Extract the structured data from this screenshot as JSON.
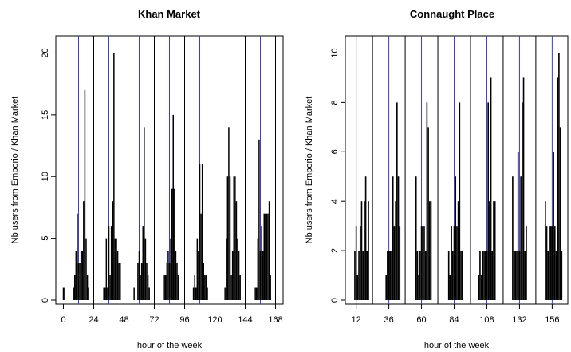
{
  "chart_data": [
    {
      "type": "bar",
      "title": "Khan Market",
      "xlabel": "hour of the week",
      "ylabel": "Nb users from Emporio / Khan Market",
      "xlim": [
        -6,
        174
      ],
      "ylim": [
        0,
        21
      ],
      "xticks": [
        0,
        24,
        48,
        72,
        96,
        120,
        144,
        168
      ],
      "yticks": [
        0,
        5,
        10,
        15,
        20
      ],
      "black_vlines": [
        24,
        48,
        72,
        96,
        120,
        144,
        168
      ],
      "blue_vlines": [
        12,
        36,
        60,
        84,
        108,
        132,
        156
      ],
      "bar_color": "#000000",
      "vline_color": "#000000",
      "blue_vline_color": "#3b3bd0",
      "bars": [
        [
          0,
          1
        ],
        [
          1,
          1
        ],
        [
          8,
          1
        ],
        [
          9,
          2
        ],
        [
          10,
          4
        ],
        [
          11,
          7
        ],
        [
          12,
          3
        ],
        [
          13,
          3
        ],
        [
          14,
          4
        ],
        [
          15,
          4
        ],
        [
          16,
          8
        ],
        [
          17,
          17
        ],
        [
          18,
          5
        ],
        [
          19,
          2
        ],
        [
          20,
          1
        ],
        [
          32,
          1
        ],
        [
          33,
          1
        ],
        [
          34,
          5
        ],
        [
          35,
          1
        ],
        [
          36,
          6
        ],
        [
          37,
          2
        ],
        [
          38,
          6
        ],
        [
          39,
          8
        ],
        [
          40,
          20
        ],
        [
          41,
          5
        ],
        [
          42,
          5
        ],
        [
          43,
          4
        ],
        [
          44,
          3
        ],
        [
          45,
          3
        ],
        [
          56,
          1
        ],
        [
          59,
          3
        ],
        [
          60,
          4
        ],
        [
          61,
          2
        ],
        [
          62,
          3
        ],
        [
          63,
          6
        ],
        [
          64,
          14
        ],
        [
          65,
          5
        ],
        [
          66,
          3
        ],
        [
          67,
          2
        ],
        [
          68,
          1
        ],
        [
          80,
          2
        ],
        [
          81,
          2
        ],
        [
          82,
          3
        ],
        [
          83,
          4
        ],
        [
          84,
          3
        ],
        [
          85,
          5
        ],
        [
          86,
          9
        ],
        [
          87,
          15
        ],
        [
          88,
          9
        ],
        [
          89,
          4
        ],
        [
          90,
          3
        ],
        [
          91,
          2
        ],
        [
          103,
          1
        ],
        [
          104,
          2
        ],
        [
          105,
          1
        ],
        [
          106,
          5
        ],
        [
          107,
          4
        ],
        [
          108,
          11
        ],
        [
          109,
          7
        ],
        [
          110,
          11
        ],
        [
          111,
          3
        ],
        [
          112,
          2
        ],
        [
          113,
          2
        ],
        [
          114,
          1
        ],
        [
          128,
          1
        ],
        [
          129,
          5
        ],
        [
          130,
          10
        ],
        [
          131,
          14
        ],
        [
          132,
          10
        ],
        [
          133,
          2
        ],
        [
          134,
          4
        ],
        [
          135,
          10
        ],
        [
          136,
          10
        ],
        [
          137,
          8
        ],
        [
          138,
          5
        ],
        [
          139,
          4
        ],
        [
          140,
          2
        ],
        [
          152,
          1
        ],
        [
          153,
          1
        ],
        [
          154,
          5
        ],
        [
          155,
          13
        ],
        [
          156,
          4
        ],
        [
          157,
          6
        ],
        [
          158,
          4
        ],
        [
          159,
          7
        ],
        [
          160,
          7
        ],
        [
          161,
          7
        ],
        [
          162,
          7
        ],
        [
          163,
          8
        ],
        [
          164,
          2
        ]
      ]
    },
    {
      "type": "bar",
      "title": "Connaught Place",
      "xlabel": "hour of the week",
      "ylabel": "Nb users from Emporio / Khan Market",
      "xlim": [
        4,
        167.5
      ],
      "ylim": [
        0,
        10.5
      ],
      "xticks": [
        12,
        36,
        60,
        84,
        108,
        132,
        156
      ],
      "yticks": [
        0,
        2,
        4,
        6,
        8,
        10
      ],
      "black_vlines": [
        24,
        48,
        72,
        96,
        120,
        144
      ],
      "blue_vlines": [
        12,
        36,
        60,
        84,
        108,
        132,
        156
      ],
      "bar_color": "#000000",
      "vline_color": "#000000",
      "blue_vline_color": "#3b3bd0",
      "bars": [
        [
          11,
          2
        ],
        [
          12,
          3
        ],
        [
          13,
          1
        ],
        [
          14,
          2
        ],
        [
          15,
          3
        ],
        [
          16,
          4
        ],
        [
          17,
          2
        ],
        [
          18,
          4
        ],
        [
          19,
          5
        ],
        [
          20,
          2
        ],
        [
          21,
          4
        ],
        [
          34,
          1
        ],
        [
          35,
          2
        ],
        [
          36,
          2
        ],
        [
          37,
          2
        ],
        [
          38,
          2
        ],
        [
          39,
          5
        ],
        [
          40,
          3
        ],
        [
          41,
          4
        ],
        [
          42,
          8
        ],
        [
          43,
          5
        ],
        [
          44,
          3
        ],
        [
          56,
          5
        ],
        [
          57,
          2
        ],
        [
          58,
          1
        ],
        [
          59,
          2
        ],
        [
          60,
          3
        ],
        [
          61,
          3
        ],
        [
          62,
          3
        ],
        [
          63,
          2
        ],
        [
          64,
          8
        ],
        [
          65,
          7
        ],
        [
          66,
          4
        ],
        [
          67,
          4
        ],
        [
          80,
          2
        ],
        [
          81,
          1
        ],
        [
          82,
          3
        ],
        [
          83,
          2
        ],
        [
          84,
          3
        ],
        [
          85,
          5
        ],
        [
          86,
          3
        ],
        [
          87,
          4
        ],
        [
          88,
          8
        ],
        [
          89,
          2
        ],
        [
          90,
          2
        ],
        [
          102,
          1
        ],
        [
          103,
          2
        ],
        [
          104,
          1
        ],
        [
          105,
          2
        ],
        [
          106,
          2
        ],
        [
          107,
          2
        ],
        [
          108,
          2
        ],
        [
          109,
          8
        ],
        [
          110,
          4
        ],
        [
          111,
          9
        ],
        [
          112,
          2
        ],
        [
          113,
          4
        ],
        [
          114,
          4
        ],
        [
          127,
          5
        ],
        [
          128,
          2
        ],
        [
          129,
          2
        ],
        [
          130,
          2
        ],
        [
          131,
          6
        ],
        [
          132,
          2
        ],
        [
          133,
          5
        ],
        [
          134,
          8
        ],
        [
          135,
          9
        ],
        [
          136,
          2
        ],
        [
          137,
          3
        ],
        [
          151,
          4
        ],
        [
          152,
          3
        ],
        [
          153,
          2
        ],
        [
          154,
          3
        ],
        [
          155,
          3
        ],
        [
          156,
          3
        ],
        [
          157,
          6
        ],
        [
          158,
          3
        ],
        [
          159,
          2
        ],
        [
          160,
          9
        ],
        [
          161,
          10
        ],
        [
          162,
          7
        ],
        [
          163,
          2
        ]
      ]
    }
  ]
}
